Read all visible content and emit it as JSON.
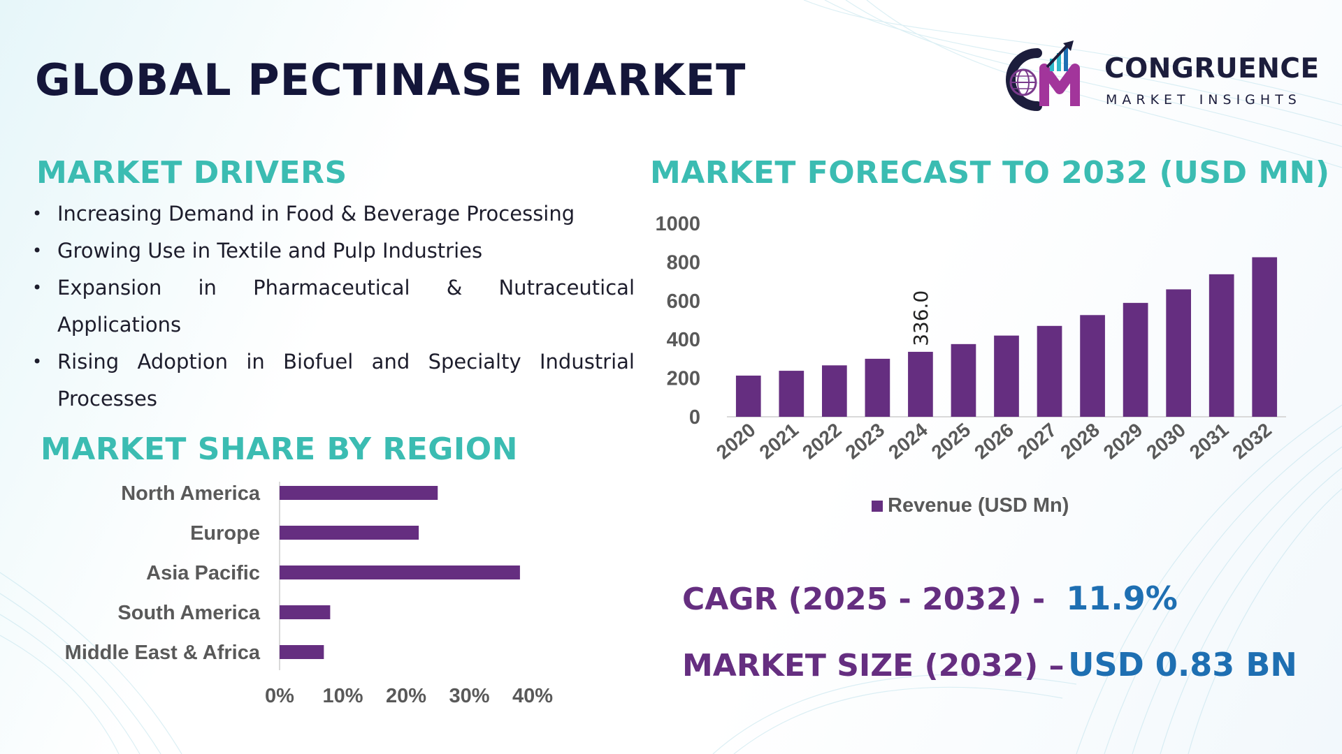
{
  "title": "GLOBAL PECTINASE MARKET",
  "logo": {
    "name": "CONGRUENCE",
    "sub": "MARKET INSIGHTS",
    "icon": "globe-bar-chart-logo-icon"
  },
  "drivers": {
    "title": "MARKET DRIVERS",
    "items": [
      "Increasing Demand in Food & Beverage Processing",
      "Growing Use in Textile and Pulp Industries",
      "Expansion in Pharmaceutical & Nutraceutical Applications",
      "Rising Adoption in Biofuel and Specialty Industrial Processes"
    ]
  },
  "forecast": {
    "title": "MARKET FORECAST TO 2032 (USD MN)"
  },
  "region": {
    "title": "MARKET SHARE BY REGION"
  },
  "kpis": {
    "cagr_label": "CAGR (2025 - 2032) -",
    "cagr_value": "11.9%",
    "size_label": "MARKET SIZE (2032) –",
    "size_value": "USD 0.83 BN"
  },
  "colors": {
    "bar": "#652e80",
    "teal": "#3bbcb2",
    "blue": "#1e6fb2",
    "navy": "#14163a"
  },
  "chart_data": [
    {
      "type": "bar",
      "title": "MARKET FORECAST TO 2032 (USD MN)",
      "categories": [
        "2020",
        "2021",
        "2022",
        "2023",
        "2024",
        "2025",
        "2026",
        "2027",
        "2028",
        "2029",
        "2030",
        "2031",
        "2032"
      ],
      "series": [
        {
          "name": "Revenue (USD Mn)",
          "values": [
            213,
            238,
            266,
            300,
            336,
            376,
            420,
            470,
            526,
            589,
            659,
            737,
            825
          ]
        }
      ],
      "data_labels": [
        {
          "category": "2024",
          "text": "336.0"
        }
      ],
      "yticks": [
        "0",
        "200",
        "400",
        "600",
        "800",
        "1000"
      ],
      "ylim": [
        0,
        1000
      ],
      "legend": "bottom",
      "grid": false
    },
    {
      "type": "bar",
      "orientation": "horizontal",
      "title": "MARKET SHARE BY REGION",
      "categories": [
        "North America",
        "Europe",
        "Asia Pacific",
        "South America",
        "Middle East & Africa"
      ],
      "values": [
        25,
        22,
        38,
        8,
        7
      ],
      "xticks": [
        "0%",
        "10%",
        "20%",
        "30%",
        "40%"
      ],
      "xlim": [
        0,
        40
      ],
      "unit": "%"
    }
  ]
}
